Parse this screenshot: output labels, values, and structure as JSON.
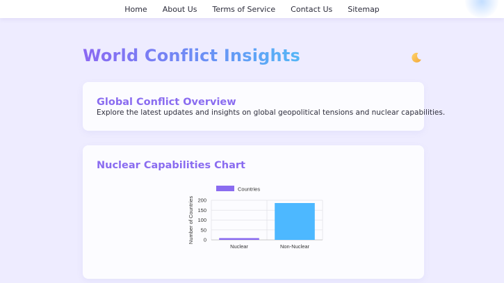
{
  "nav": {
    "items": [
      "Home",
      "About Us",
      "Terms of Service",
      "Contact Us",
      "Sitemap"
    ]
  },
  "header": {
    "title": "World Conflict Insights",
    "theme_toggle_icon": "moon-icon"
  },
  "overview": {
    "title": "Global Conflict Overview",
    "text": "Explore the latest updates and insights on global geopolitical tensions and nuclear capabilities."
  },
  "chart_section": {
    "title": "Nuclear Capabilities Chart"
  },
  "colors": {
    "accent": "#8a6cf0",
    "nuclear_bar": "#8a6cf0",
    "non_nuclear_bar": "#4db8ff"
  },
  "chart_data": {
    "type": "bar",
    "categories": [
      "Nuclear",
      "Non-Nuclear"
    ],
    "series": [
      {
        "name": "Countries",
        "values": [
          9,
          186
        ]
      }
    ],
    "ylabel": "Number of Countries",
    "ylim": [
      0,
      200
    ],
    "yticks": [
      0,
      50,
      100,
      150,
      200
    ],
    "legend_position": "top",
    "grid": true
  }
}
